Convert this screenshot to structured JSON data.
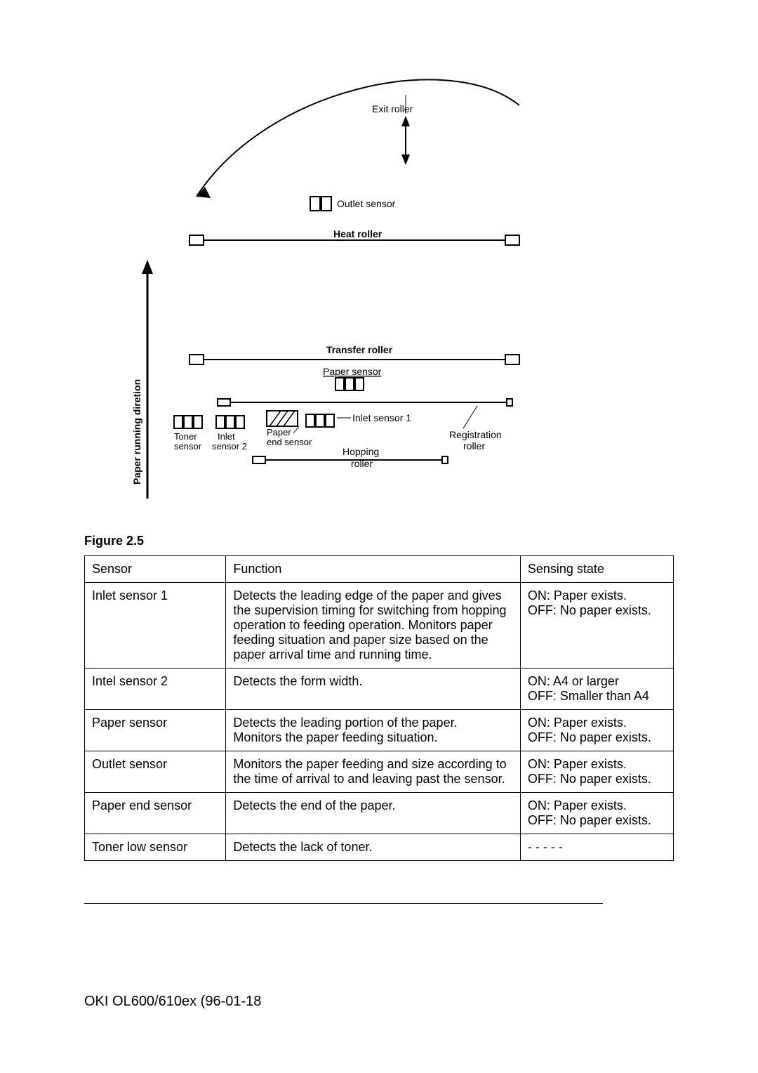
{
  "diagram": {
    "labels": {
      "exit_roller": "Exit roller",
      "outlet_sensor": "Outlet sensor",
      "heat_roller": "Heat roller",
      "transfer_roller": "Transfer roller",
      "paper_sensor": "Paper sensor",
      "inlet_sensor_1": "Inlet sensor 1",
      "paper_end_sensor_l1": "Paper",
      "paper_end_sensor_l2": "end sensor",
      "registration": "Registration",
      "roller": "roller",
      "hopping": "Hopping",
      "hopping_roller": "roller",
      "toner": "Toner",
      "toner_sensor": "sensor",
      "inlet": "Inlet",
      "inlet_sensor2": "sensor 2",
      "side_label": "Paper running diretion"
    },
    "style": {
      "stroke": "#000000",
      "stroke_width": 2,
      "label_fontsize": 14,
      "side_label_fontsize": 14
    }
  },
  "figure_label": "Figure 2.5",
  "table": {
    "columns": [
      "Sensor",
      "Function",
      "Sensing state"
    ],
    "rows": [
      {
        "sensor": "Inlet sensor 1",
        "function": "Detects the leading edge of the paper and gives the supervision timing for switching from hopping operation to feeding operation. Monitors paper feeding situation and paper size based on the paper arrival time and running time.",
        "state": "ON: Paper exists.\nOFF: No paper exists."
      },
      {
        "sensor": "Intel sensor 2",
        "function": "Detects the form width.",
        "state": "ON: A4 or larger\nOFF: Smaller than A4"
      },
      {
        "sensor": "Paper sensor",
        "function": "Detects the leading portion of the paper.\nMonitors the paper feeding situation.",
        "state": "ON: Paper exists.\nOFF: No paper exists."
      },
      {
        "sensor": "Outlet sensor",
        "function": "Monitors the paper feeding and size according to the time of arrival to and leaving past the sensor.",
        "state": "ON: Paper exists.\nOFF: No paper exists."
      },
      {
        "sensor": "Paper end sensor",
        "function": "Detects the end of the paper.",
        "state": "ON: Paper exists.\nOFF: No paper exists."
      },
      {
        "sensor": "Toner low sensor",
        "function": "Detects the lack of toner.",
        "state": "- - - - -"
      }
    ]
  },
  "footer": "OKI OL600/610ex (96-01-18"
}
